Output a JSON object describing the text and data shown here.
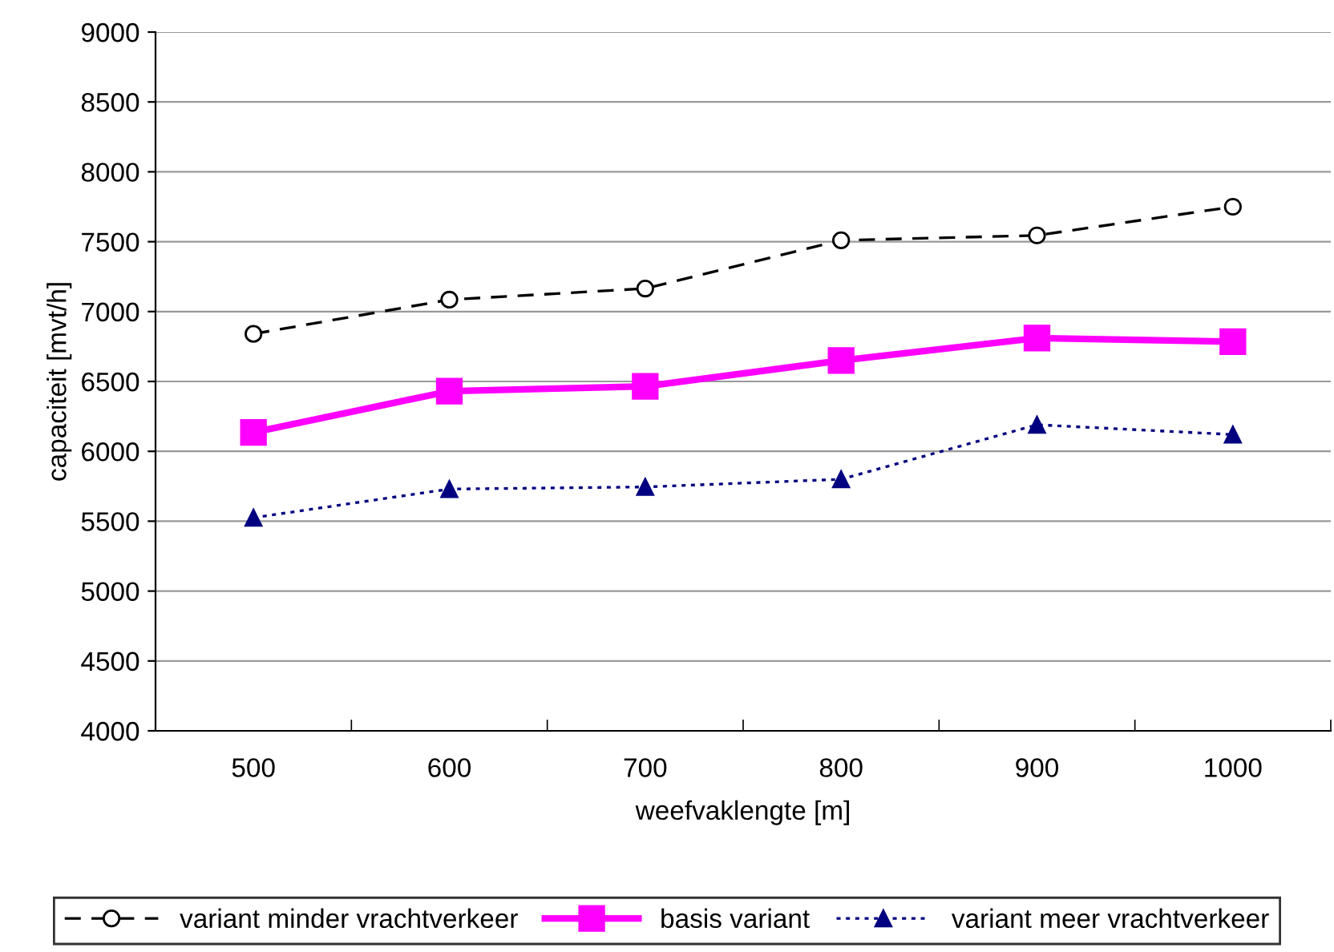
{
  "chart_data": {
    "type": "line",
    "xlabel": "weefvaklengte [m]",
    "ylabel": "capaciteit [mvt/h]",
    "categories": [
      "500",
      "600",
      "700",
      "800",
      "900",
      "1000"
    ],
    "ylim": [
      4000,
      9000
    ],
    "yticks": [
      4000,
      4500,
      5000,
      5500,
      6000,
      6500,
      7000,
      7500,
      8000,
      8500,
      9000
    ],
    "grid": "y",
    "legend": "bottom",
    "series": [
      {
        "name": "variant minder vrachtverkeer",
        "color": "#000000",
        "marker": "circle",
        "line_style": "dashed",
        "values": [
          6840,
          7085,
          7165,
          7510,
          7545,
          7750
        ]
      },
      {
        "name": "basis variant",
        "color": "#ff00ff",
        "marker": "square",
        "line_style": "solid",
        "values": [
          6135,
          6430,
          6465,
          6650,
          6810,
          6785
        ]
      },
      {
        "name": "variant meer vrachtverkeer",
        "color": "#000080",
        "marker": "triangle",
        "line_style": "dotted",
        "values": [
          5525,
          5730,
          5745,
          5800,
          6190,
          6120
        ]
      }
    ]
  }
}
